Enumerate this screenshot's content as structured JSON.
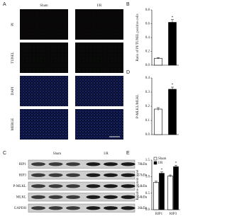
{
  "panels": {
    "A": {
      "label": "A",
      "columns": [
        "Sham",
        "I/R"
      ],
      "rows": [
        "PI",
        "TUNEL",
        "DAPI",
        "MERGE"
      ]
    },
    "C": {
      "label": "C",
      "columns": [
        "Sham",
        "I/R"
      ],
      "rows": [
        {
          "name": "RIP1",
          "size": "78kDa"
        },
        {
          "name": "RIP3",
          "size": "57kDa"
        },
        {
          "name": "P-MLKL",
          "size": "54kDa"
        },
        {
          "name": "MLKL",
          "size": "54kDa"
        },
        {
          "name": "GAPDH",
          "size": "36kDa"
        }
      ]
    }
  },
  "chart_data": [
    {
      "type": "bar",
      "label": "B",
      "ylabel": "Ratio of PI/TUNEL positive cells",
      "values": [
        0.1,
        0.62
      ],
      "errors": [
        0.01,
        0.04
      ],
      "colors": [
        "#ffffff",
        "#000000"
      ],
      "annotation": "*",
      "ylim": [
        0,
        0.8
      ],
      "yticks": [
        {
          "value": 0,
          "label": "0.0"
        },
        0.2,
        0.4,
        0.6,
        0.8
      ]
    },
    {
      "type": "bar",
      "label": "D",
      "ylabel": "P-MLKL/MLKL",
      "values": [
        0.18,
        0.32
      ],
      "errors": [
        0.01,
        0.015
      ],
      "colors": [
        "#ffffff",
        "#000000"
      ],
      "annotation": "*",
      "ylim": [
        0,
        0.4
      ],
      "yticks": [
        {
          "value": 0,
          "label": "0.0"
        },
        0.1,
        0.2,
        0.3,
        0.4
      ]
    },
    {
      "type": "grouped-bar",
      "label": "E",
      "ylabel": "Relative protein level",
      "categories": [
        "RIP1",
        "RIP3"
      ],
      "series": [
        {
          "name": "Sham",
          "color": "#ffffff",
          "values": [
            0.83,
            1.02
          ],
          "errors": [
            0.03,
            0.03
          ]
        },
        {
          "name": "I/R",
          "color": "#000000",
          "values": [
            1.1,
            1.3
          ],
          "errors": [
            0.04,
            0.04
          ]
        }
      ],
      "annotation": "*",
      "legend": "upper left",
      "ylim": [
        0,
        1.5
      ],
      "yticks": [
        {
          "value": 0,
          "label": "0.0"
        },
        0.5,
        {
          "value": 1,
          "label": "1.0"
        },
        1.5
      ]
    }
  ]
}
